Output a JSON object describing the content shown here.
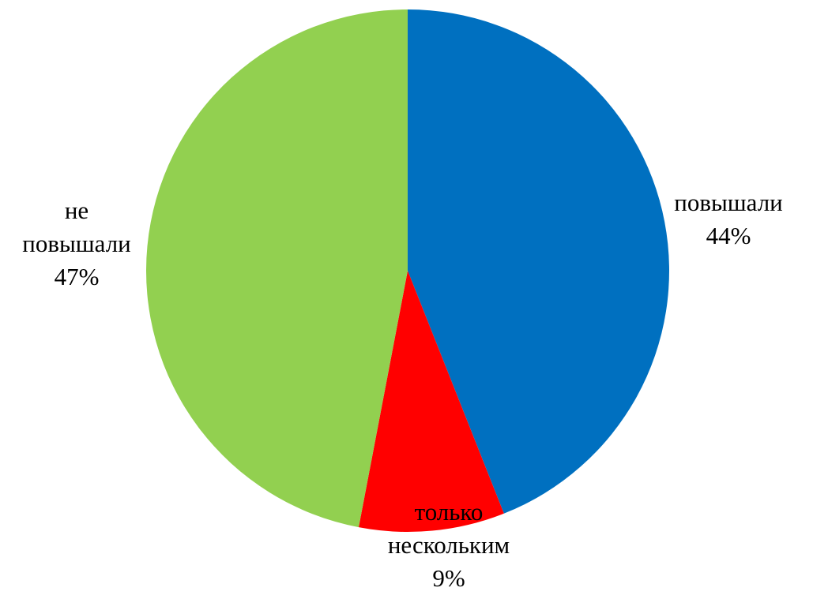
{
  "chart_data": {
    "type": "pie",
    "categories": [
      "повышали",
      "только нескольким",
      "не повышали"
    ],
    "values": [
      44,
      9,
      47
    ],
    "value_labels": [
      "44%",
      "9%",
      "47%"
    ],
    "colors": [
      "#0070c0",
      "#ff0000",
      "#92d050"
    ]
  }
}
